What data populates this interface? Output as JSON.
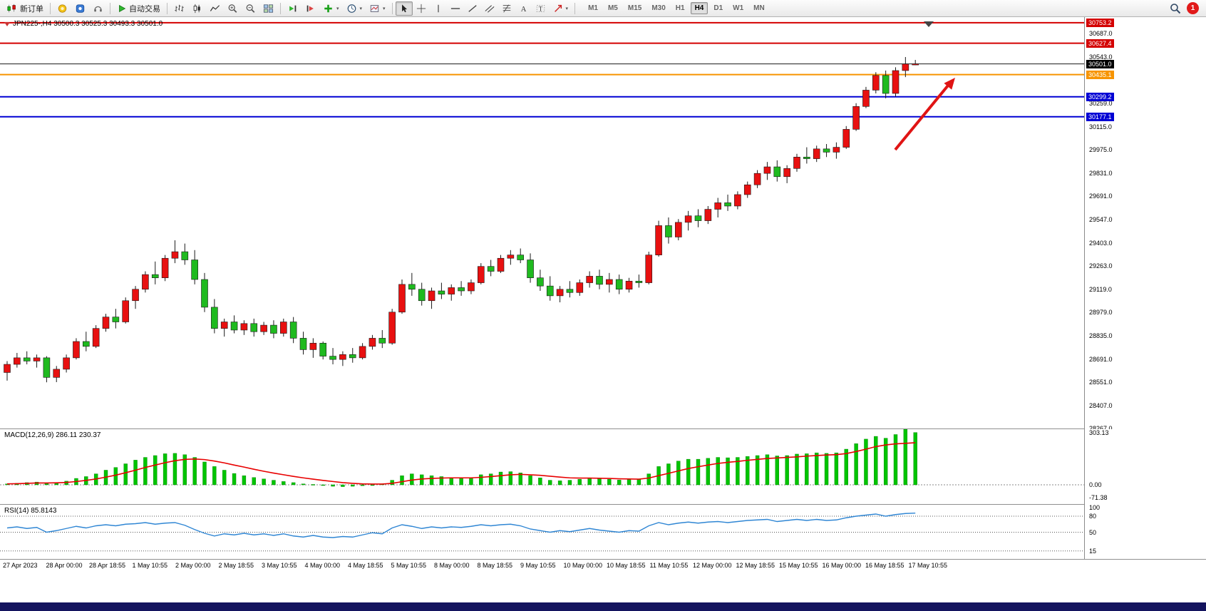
{
  "toolbar": {
    "new_order_label": "新订单",
    "autotrading_label": "自动交易",
    "timeframes": [
      "M1",
      "M5",
      "M15",
      "M30",
      "H1",
      "H4",
      "D1",
      "W1",
      "MN"
    ],
    "active_timeframe": "H4",
    "notification_count": "1",
    "icon_names": [
      "new-order-icon",
      "metaeditor-icon",
      "community-icon",
      "market-icon",
      "autotrading-icon",
      "chart-bars-icon",
      "chart-candles-icon",
      "chart-line-icon",
      "zoom-in-icon",
      "zoom-out-icon",
      "tile-windows-icon",
      "auto-scroll-icon",
      "chart-shift-icon",
      "indicators-icon",
      "periods-icon",
      "templates-icon",
      "cursor-icon",
      "crosshair-icon",
      "vertical-line-icon",
      "horizontal-line-icon",
      "trendline-icon",
      "channel-icon",
      "fibonacci-icon",
      "text-icon",
      "label-icon",
      "arrows-icon",
      "search-icon",
      "notification-badge"
    ]
  },
  "chart": {
    "info_line": "JPN225-,H4  30500.3 30525.3 30493.3 30501.0",
    "price_axis_labels": [
      "30687.0",
      "30543.0",
      "30259.0",
      "30115.0",
      "29975.0",
      "29831.0",
      "29691.0",
      "29547.0",
      "29403.0",
      "29263.0",
      "29119.0",
      "28979.0",
      "28835.0",
      "28691.0",
      "28551.0",
      "28407.0",
      "28267.0"
    ],
    "price_badges": [
      {
        "text": "30753.2",
        "price": 30753.2,
        "color": "#d40000"
      },
      {
        "text": "30627.4",
        "price": 30627.4,
        "color": "#d40000"
      },
      {
        "text": "30501.0",
        "price": 30501.0,
        "color": "#000000"
      },
      {
        "text": "30435.1",
        "price": 30435.1,
        "color": "#f79400"
      },
      {
        "text": "30299.2",
        "price": 30299.2,
        "color": "#0000d4"
      },
      {
        "text": "30177.1",
        "price": 30177.1,
        "color": "#0000d4"
      }
    ],
    "horizontal_lines": [
      {
        "price": 30753.2,
        "color": "#d40000",
        "width": 2
      },
      {
        "price": 30627.4,
        "color": "#d40000",
        "width": 2
      },
      {
        "price": 30501.0,
        "color": "#1a1a1a",
        "width": 1
      },
      {
        "price": 30435.1,
        "color": "#f79400",
        "width": 2
      },
      {
        "price": 30299.2,
        "color": "#0000d4",
        "width": 2
      },
      {
        "price": 30177.1,
        "color": "#0000d4",
        "width": 2
      }
    ],
    "axis_range": {
      "top": 30787.5,
      "bottom": 28267.0
    }
  },
  "chart_data": {
    "type": "candlestick",
    "title": "JPN225-,H4",
    "bull_color": "#e81010",
    "bear_color": "#1fba1f",
    "x_labels": [
      "27 Apr 2023",
      "28 Apr 00:00",
      "28 Apr 18:55",
      "1 May 10:55",
      "2 May 00:00",
      "2 May 18:55",
      "3 May 10:55",
      "4 May 00:00",
      "4 May 18:55",
      "5 May 10:55",
      "8 May 00:00",
      "8 May 18:55",
      "9 May 10:55",
      "10 May 00:00",
      "10 May 18:55",
      "11 May 10:55",
      "12 May 00:00",
      "12 May 18:55",
      "15 May 10:55",
      "16 May 00:00",
      "16 May 18:55",
      "17 May 10:55"
    ],
    "ohlc": [
      [
        28610,
        28680,
        28560,
        28660
      ],
      [
        28660,
        28730,
        28640,
        28700
      ],
      [
        28700,
        28740,
        28660,
        28680
      ],
      [
        28680,
        28720,
        28640,
        28700
      ],
      [
        28700,
        28710,
        28550,
        28580
      ],
      [
        28580,
        28650,
        28551,
        28630
      ],
      [
        28630,
        28720,
        28610,
        28700
      ],
      [
        28700,
        28820,
        28690,
        28800
      ],
      [
        28800,
        28860,
        28740,
        28770
      ],
      [
        28770,
        28900,
        28760,
        28880
      ],
      [
        28880,
        28970,
        28860,
        28950
      ],
      [
        28950,
        29000,
        28880,
        28920
      ],
      [
        28920,
        29070,
        28910,
        29050
      ],
      [
        29050,
        29140,
        29000,
        29120
      ],
      [
        29120,
        29230,
        29100,
        29210
      ],
      [
        29210,
        29290,
        29150,
        29190
      ],
      [
        29190,
        29330,
        29170,
        29310
      ],
      [
        29310,
        29420,
        29280,
        29350
      ],
      [
        29350,
        29400,
        29270,
        29300
      ],
      [
        29300,
        29360,
        29150,
        29180
      ],
      [
        29180,
        29220,
        28980,
        29010
      ],
      [
        29010,
        29060,
        28850,
        28880
      ],
      [
        28880,
        28940,
        28830,
        28920
      ],
      [
        28920,
        28960,
        28850,
        28870
      ],
      [
        28870,
        28930,
        28840,
        28910
      ],
      [
        28910,
        28940,
        28830,
        28860
      ],
      [
        28860,
        28920,
        28840,
        28900
      ],
      [
        28900,
        28930,
        28820,
        28850
      ],
      [
        28850,
        28940,
        28830,
        28920
      ],
      [
        28920,
        28950,
        28790,
        28820
      ],
      [
        28820,
        28860,
        28720,
        28750
      ],
      [
        28750,
        28820,
        28700,
        28790
      ],
      [
        28790,
        28800,
        28690,
        28710
      ],
      [
        28710,
        28760,
        28660,
        28690
      ],
      [
        28690,
        28740,
        28650,
        28720
      ],
      [
        28720,
        28760,
        28670,
        28700
      ],
      [
        28700,
        28790,
        28690,
        28770
      ],
      [
        28770,
        28840,
        28750,
        28820
      ],
      [
        28820,
        28870,
        28760,
        28790
      ],
      [
        28790,
        29000,
        28780,
        28980
      ],
      [
        28980,
        29180,
        28970,
        29150
      ],
      [
        29150,
        29220,
        29080,
        29120
      ],
      [
        29120,
        29160,
        29020,
        29050
      ],
      [
        29050,
        29130,
        29000,
        29110
      ],
      [
        29110,
        29160,
        29060,
        29090
      ],
      [
        29090,
        29150,
        29050,
        29130
      ],
      [
        29130,
        29170,
        29080,
        29110
      ],
      [
        29110,
        29180,
        29090,
        29160
      ],
      [
        29160,
        29280,
        29150,
        29260
      ],
      [
        29260,
        29300,
        29200,
        29230
      ],
      [
        29230,
        29330,
        29220,
        29310
      ],
      [
        29310,
        29360,
        29270,
        29330
      ],
      [
        29330,
        29370,
        29280,
        29300
      ],
      [
        29300,
        29340,
        29160,
        29190
      ],
      [
        29190,
        29240,
        29110,
        29140
      ],
      [
        29140,
        29200,
        29050,
        29080
      ],
      [
        29080,
        29140,
        29040,
        29120
      ],
      [
        29120,
        29170,
        29070,
        29100
      ],
      [
        29100,
        29180,
        29080,
        29160
      ],
      [
        29160,
        29230,
        29130,
        29200
      ],
      [
        29200,
        29240,
        29120,
        29150
      ],
      [
        29150,
        29220,
        29100,
        29180
      ],
      [
        29180,
        29210,
        29090,
        29120
      ],
      [
        29120,
        29190,
        29100,
        29170
      ],
      [
        29170,
        29210,
        29130,
        29160
      ],
      [
        29160,
        29350,
        29150,
        29330
      ],
      [
        29330,
        29540,
        29320,
        29510
      ],
      [
        29510,
        29560,
        29400,
        29440
      ],
      [
        29440,
        29550,
        29420,
        29530
      ],
      [
        29530,
        29600,
        29480,
        29570
      ],
      [
        29570,
        29610,
        29500,
        29540
      ],
      [
        29540,
        29630,
        29520,
        29610
      ],
      [
        29610,
        29680,
        29560,
        29650
      ],
      [
        29650,
        29700,
        29600,
        29630
      ],
      [
        29630,
        29720,
        29610,
        29700
      ],
      [
        29700,
        29780,
        29680,
        29760
      ],
      [
        29760,
        29850,
        29740,
        29830
      ],
      [
        29830,
        29900,
        29790,
        29870
      ],
      [
        29870,
        29910,
        29780,
        29810
      ],
      [
        29810,
        29880,
        29770,
        29860
      ],
      [
        29860,
        29950,
        29840,
        29930
      ],
      [
        29930,
        29990,
        29890,
        29920
      ],
      [
        29920,
        30000,
        29900,
        29980
      ],
      [
        29980,
        30010,
        29930,
        29960
      ],
      [
        29960,
        30020,
        29920,
        29990
      ],
      [
        29990,
        30120,
        29980,
        30100
      ],
      [
        30100,
        30260,
        30090,
        30240
      ],
      [
        30240,
        30360,
        30230,
        30340
      ],
      [
        30340,
        30450,
        30320,
        30430
      ],
      [
        30430,
        30460,
        30290,
        30320
      ],
      [
        30320,
        30480,
        30300,
        30460
      ],
      [
        30460,
        30543,
        30420,
        30500
      ],
      [
        30500.3,
        30525.3,
        30493.3,
        30501.0
      ]
    ],
    "indicators": {
      "macd": {
        "label": "MACD(12,26,9) 286.11 230.37",
        "axis_labels": [
          "303.13",
          "0.00",
          "-71.38"
        ],
        "histogram_color": "#00c400",
        "signal_color": "#e80000",
        "histogram": [
          5,
          8,
          12,
          15,
          10,
          12,
          20,
          35,
          45,
          60,
          80,
          95,
          115,
          135,
          150,
          160,
          170,
          172,
          165,
          150,
          125,
          100,
          80,
          62,
          50,
          40,
          32,
          25,
          18,
          12,
          5,
          2,
          -3,
          -8,
          -10,
          -8,
          -5,
          0,
          5,
          25,
          50,
          60,
          55,
          50,
          45,
          40,
          38,
          40,
          55,
          60,
          70,
          72,
          65,
          50,
          38,
          25,
          22,
          25,
          30,
          38,
          35,
          30,
          26,
          28,
          30,
          60,
          100,
          115,
          130,
          140,
          140,
          145,
          150,
          148,
          150,
          155,
          160,
          165,
          158,
          160,
          168,
          170,
          175,
          172,
          175,
          195,
          225,
          250,
          265,
          255,
          275,
          303.13,
          286.11
        ],
        "signal": [
          5,
          6,
          8,
          10,
          10,
          11,
          13,
          18,
          24,
          32,
          42,
          53,
          66,
          80,
          95,
          108,
          121,
          132,
          139,
          141,
          138,
          130,
          120,
          108,
          97,
          85,
          74,
          64,
          55,
          46,
          38,
          31,
          24,
          18,
          12,
          8,
          5,
          4,
          4,
          8,
          17,
          26,
          32,
          35,
          37,
          38,
          38,
          38,
          41,
          45,
          50,
          55,
          57,
          55,
          52,
          47,
          42,
          38,
          37,
          37,
          36,
          35,
          33,
          32,
          31,
          37,
          50,
          63,
          76,
          89,
          99,
          108,
          117,
          123,
          128,
          134,
          139,
          144,
          147,
          150,
          153,
          157,
          160,
          163,
          165,
          171,
          182,
          195,
          209,
          218,
          224,
          227,
          230.37
        ]
      },
      "rsi": {
        "label": "RSI(14) 85.8143",
        "axis_labels": [
          "100",
          "80",
          "50",
          "15"
        ],
        "levels": [
          80,
          50,
          15
        ],
        "line_color": "#2f86d4",
        "values": [
          58,
          60,
          57,
          59,
          50,
          53,
          57,
          61,
          58,
          62,
          64,
          62,
          65,
          66,
          68,
          65,
          67,
          68,
          63,
          55,
          48,
          43,
          47,
          45,
          48,
          45,
          47,
          44,
          47,
          43,
          41,
          44,
          41,
          40,
          42,
          41,
          45,
          49,
          47,
          58,
          64,
          61,
          57,
          60,
          58,
          60,
          59,
          61,
          64,
          62,
          64,
          65,
          62,
          56,
          53,
          50,
          53,
          51,
          54,
          57,
          54,
          52,
          50,
          53,
          52,
          62,
          68,
          64,
          67,
          69,
          67,
          69,
          70,
          68,
          70,
          72,
          73,
          74,
          70,
          72,
          74,
          72,
          74,
          72,
          73,
          77,
          80,
          82,
          84,
          80,
          83,
          85,
          85.81
        ]
      }
    },
    "annotations": [
      {
        "type": "arrow",
        "color": "#e01414",
        "from_price": 29980,
        "to_price": 30430,
        "note": "up-trend arrow at right edge"
      }
    ]
  }
}
